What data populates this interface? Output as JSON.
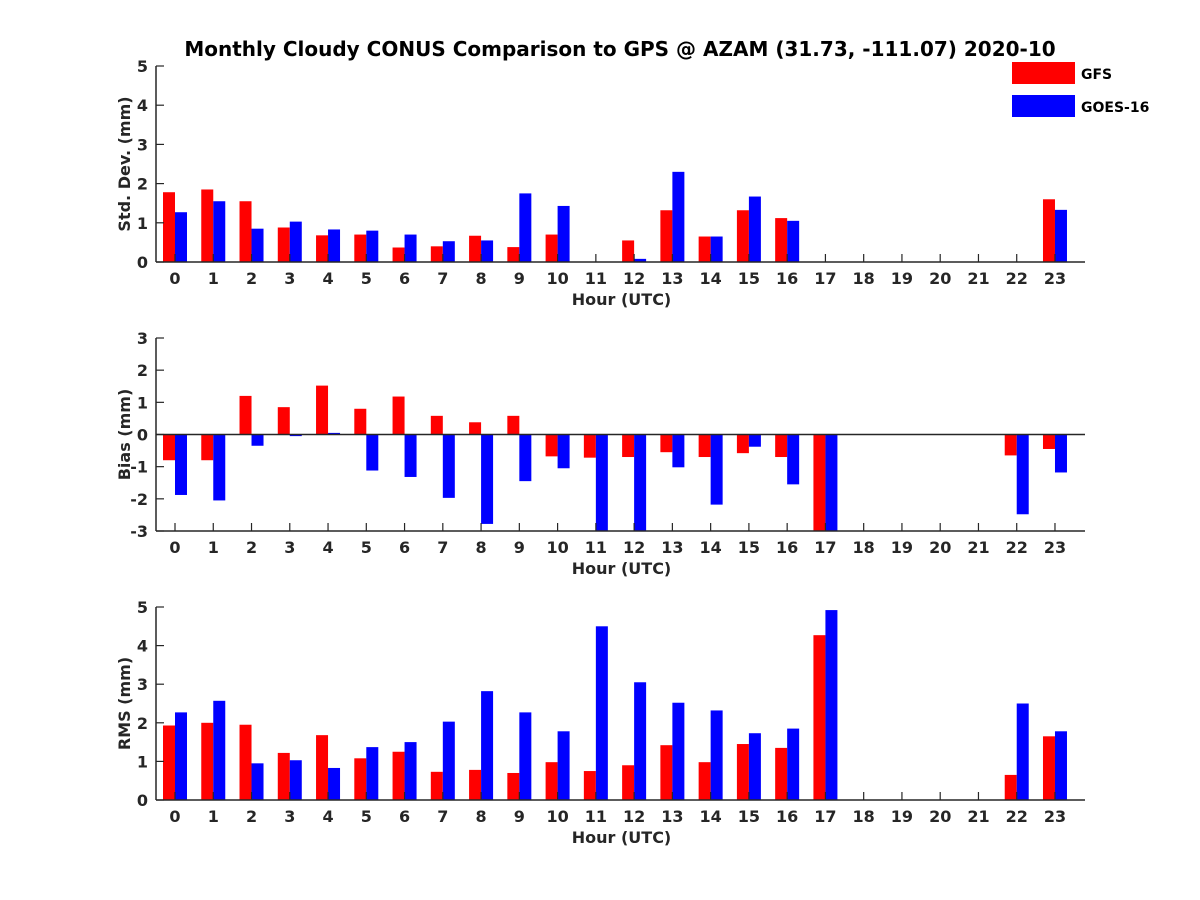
{
  "title": "Monthly Cloudy CONUS Comparison to GPS @ AZAM (31.73, -111.07) 2020-10",
  "legend": {
    "placement": "top-right",
    "items": [
      {
        "name": "GFS",
        "color": "#ff0000"
      },
      {
        "name": "GOES-16",
        "color": "#0000ff"
      }
    ]
  },
  "chart_data": [
    {
      "type": "bar",
      "xlabel": "Hour (UTC)",
      "ylabel": "Std. Dev. (mm)",
      "categories": [
        "0",
        "1",
        "2",
        "3",
        "4",
        "5",
        "6",
        "7",
        "8",
        "9",
        "10",
        "11",
        "12",
        "13",
        "14",
        "15",
        "16",
        "17",
        "18",
        "19",
        "20",
        "21",
        "22",
        "23"
      ],
      "ylim": [
        0,
        5
      ],
      "yticks": [
        0,
        1,
        2,
        3,
        4,
        5
      ],
      "series": [
        {
          "name": "GFS",
          "color": "#ff0000",
          "values": [
            1.78,
            1.85,
            1.55,
            0.88,
            0.68,
            0.7,
            0.37,
            0.4,
            0.67,
            0.38,
            0.7,
            null,
            0.55,
            1.32,
            0.65,
            1.32,
            1.12,
            null,
            null,
            null,
            null,
            null,
            null,
            1.6
          ]
        },
        {
          "name": "GOES-16",
          "color": "#0000ff",
          "values": [
            1.27,
            1.55,
            0.85,
            1.03,
            0.83,
            0.8,
            0.7,
            0.53,
            0.55,
            1.75,
            1.43,
            null,
            0.08,
            2.3,
            0.65,
            1.67,
            1.05,
            null,
            null,
            null,
            null,
            null,
            null,
            1.33
          ]
        }
      ]
    },
    {
      "type": "bar",
      "xlabel": "Hour (UTC)",
      "ylabel": "Bias (mm)",
      "categories": [
        "0",
        "1",
        "2",
        "3",
        "4",
        "5",
        "6",
        "7",
        "8",
        "9",
        "10",
        "11",
        "12",
        "13",
        "14",
        "15",
        "16",
        "17",
        "18",
        "19",
        "20",
        "21",
        "22",
        "23"
      ],
      "ylim": [
        -3,
        3
      ],
      "yticks": [
        -3,
        -2,
        -1,
        0,
        1,
        2,
        3
      ],
      "series": [
        {
          "name": "GFS",
          "color": "#ff0000",
          "values": [
            -0.8,
            -0.8,
            1.2,
            0.85,
            1.52,
            0.8,
            1.18,
            0.58,
            0.38,
            0.58,
            -0.68,
            -0.72,
            -0.7,
            -0.55,
            -0.7,
            -0.58,
            -0.7,
            -3.0,
            null,
            null,
            null,
            null,
            -0.65,
            -0.45
          ]
        },
        {
          "name": "GOES-16",
          "color": "#0000ff",
          "values": [
            -1.88,
            -2.05,
            -0.35,
            -0.05,
            0.05,
            -1.12,
            -1.32,
            -1.97,
            -2.78,
            -1.45,
            -1.05,
            -3.0,
            -3.0,
            -1.02,
            -2.18,
            -0.38,
            -1.55,
            -3.0,
            null,
            null,
            null,
            null,
            -2.48,
            -1.18
          ]
        }
      ]
    },
    {
      "type": "bar",
      "xlabel": "Hour (UTC)",
      "ylabel": "RMS (mm)",
      "categories": [
        "0",
        "1",
        "2",
        "3",
        "4",
        "5",
        "6",
        "7",
        "8",
        "9",
        "10",
        "11",
        "12",
        "13",
        "14",
        "15",
        "16",
        "17",
        "18",
        "19",
        "20",
        "21",
        "22",
        "23"
      ],
      "ylim": [
        0,
        5
      ],
      "yticks": [
        0,
        1,
        2,
        3,
        4,
        5
      ],
      "series": [
        {
          "name": "GFS",
          "color": "#ff0000",
          "values": [
            1.93,
            2.0,
            1.95,
            1.22,
            1.68,
            1.08,
            1.25,
            0.73,
            0.78,
            0.7,
            0.98,
            0.75,
            0.9,
            1.42,
            0.98,
            1.45,
            1.35,
            4.27,
            null,
            null,
            null,
            null,
            0.65,
            1.65
          ]
        },
        {
          "name": "GOES-16",
          "color": "#0000ff",
          "values": [
            2.27,
            2.57,
            0.95,
            1.03,
            0.83,
            1.37,
            1.5,
            2.03,
            2.82,
            2.27,
            1.78,
            4.5,
            3.05,
            2.52,
            2.32,
            1.73,
            1.85,
            4.92,
            null,
            null,
            null,
            null,
            2.5,
            1.78
          ]
        }
      ]
    }
  ]
}
